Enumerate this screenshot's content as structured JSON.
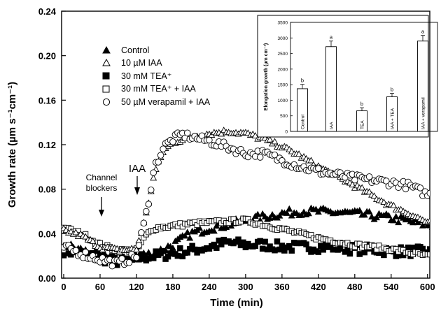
{
  "chart_data": [
    {
      "type": "scatter",
      "xlabel": "Time (min)",
      "ylabel": "Growth rate (µm s⁻¹cm⁻¹)",
      "xlim": [
        0,
        615
      ],
      "ylim": [
        0,
        0.24
      ],
      "x_ticks": [
        "0",
        "60",
        "120",
        "180",
        "240",
        "300",
        "360",
        "420",
        "480",
        "540",
        "600"
      ],
      "y_ticks": [
        "0.00",
        "0.04",
        "0.08",
        "0.12",
        "0.16",
        "0.20",
        "0.24"
      ],
      "grid": false,
      "legend": "upper-left",
      "annotations": [
        {
          "text_lines": [
            "Channel",
            "blockers"
          ],
          "x": 60,
          "y": 0.06
        },
        {
          "text": "IAA",
          "x": 118,
          "y": 0.087
        }
      ],
      "series": [
        {
          "name": "Control",
          "marker": "filled-triangle",
          "x": [
            0,
            30,
            60,
            90,
            120,
            150,
            180,
            210,
            240,
            270,
            300,
            330,
            360,
            390,
            420,
            450,
            480,
            510,
            540,
            570,
            600
          ],
          "values": [
            0.03,
            0.025,
            0.02,
            0.015,
            0.02,
            0.022,
            0.03,
            0.04,
            0.045,
            0.048,
            0.052,
            0.055,
            0.058,
            0.06,
            0.06,
            0.059,
            0.058,
            0.056,
            0.054,
            0.051,
            0.048
          ]
        },
        {
          "name": "10 µM IAA",
          "marker": "open-triangle",
          "x": [
            0,
            30,
            60,
            90,
            120,
            135,
            150,
            165,
            180,
            210,
            240,
            270,
            300,
            330,
            360,
            390,
            420,
            450,
            480,
            510,
            540,
            570,
            600
          ],
          "values": [
            0.043,
            0.038,
            0.028,
            0.025,
            0.026,
            0.055,
            0.095,
            0.115,
            0.122,
            0.127,
            0.13,
            0.132,
            0.13,
            0.125,
            0.118,
            0.11,
            0.1,
            0.092,
            0.083,
            0.074,
            0.065,
            0.058,
            0.05
          ]
        },
        {
          "name": "30 mM TEA⁺",
          "marker": "filled-square",
          "x": [
            0,
            30,
            60,
            90,
            120,
            150,
            180,
            210,
            240,
            270,
            300,
            330,
            360,
            390,
            420,
            450,
            480,
            510,
            540,
            570,
            600
          ],
          "values": [
            0.025,
            0.022,
            0.018,
            0.015,
            0.018,
            0.02,
            0.022,
            0.025,
            0.028,
            0.032,
            0.03,
            0.03,
            0.028,
            0.028,
            0.028,
            0.028,
            0.026,
            0.026,
            0.024,
            0.024,
            0.024
          ]
        },
        {
          "name": "30 mM TEA⁺ + IAA",
          "marker": "open-square",
          "x": [
            0,
            30,
            60,
            90,
            120,
            135,
            150,
            180,
            210,
            240,
            270,
            300,
            330,
            360,
            390,
            420,
            450,
            480,
            510,
            540,
            570,
            600
          ],
          "values": [
            0.045,
            0.04,
            0.03,
            0.025,
            0.025,
            0.038,
            0.045,
            0.047,
            0.049,
            0.05,
            0.051,
            0.052,
            0.048,
            0.044,
            0.04,
            0.036,
            0.033,
            0.03,
            0.028,
            0.026,
            0.023,
            0.02
          ]
        },
        {
          "name": "50 µM verapamil + IAA",
          "marker": "open-circle",
          "x": [
            0,
            30,
            60,
            90,
            120,
            135,
            150,
            165,
            180,
            195,
            210,
            240,
            270,
            300,
            330,
            360,
            390,
            420,
            450,
            480,
            510,
            540,
            570,
            600
          ],
          "values": [
            0.028,
            0.022,
            0.017,
            0.013,
            0.02,
            0.055,
            0.1,
            0.118,
            0.125,
            0.129,
            0.127,
            0.123,
            0.118,
            0.112,
            0.112,
            0.106,
            0.1,
            0.096,
            0.093,
            0.09,
            0.088,
            0.086,
            0.083,
            0.075
          ]
        }
      ]
    },
    {
      "type": "bar",
      "ylabel": "Elongation growth (µm cm⁻¹)",
      "ylim": [
        0,
        3500
      ],
      "y_ticks": [
        "0",
        "500",
        "1000",
        "1500",
        "2000",
        "2500",
        "3000",
        "3500"
      ],
      "categories": [
        "Control",
        "IAA",
        "TEA",
        "IAA + TEA",
        "IAA + verapamil"
      ],
      "values": [
        1370,
        2720,
        660,
        1110,
        2900
      ],
      "errors": [
        140,
        180,
        100,
        110,
        180
      ],
      "significance": [
        "b",
        "a",
        "b",
        "b",
        "a"
      ]
    }
  ],
  "legend": [
    {
      "label": "Control"
    },
    {
      "label": "10 µM IAA"
    },
    {
      "label": "30 mM TEA⁺"
    },
    {
      "label": "30 mM TEA⁺ + IAA"
    },
    {
      "label": "50 µM verapamil + IAA"
    }
  ],
  "annotations": {
    "channel_line1": "Channel",
    "channel_line2": "blockers",
    "iaa": "IAA"
  },
  "axes": {
    "x_title": "Time (min)",
    "y_title": "Growth rate (µm s⁻¹cm⁻¹)"
  }
}
